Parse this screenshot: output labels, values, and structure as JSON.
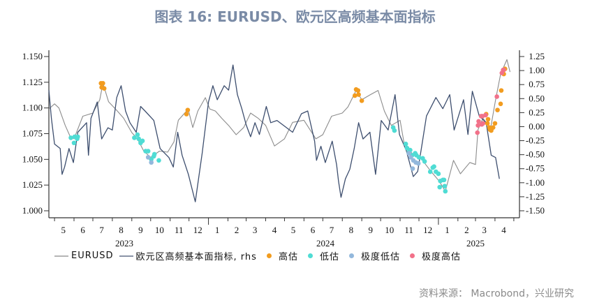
{
  "title": "图表 16: EURUSD、欧元区高频基本面指标",
  "source": "资料来源：  Macrobond，兴业研究",
  "chart_data": {
    "type": "line",
    "xlim": [
      "2023-04-22",
      "2025-05-10"
    ],
    "x_tick_labels": [
      {
        "label": "5",
        "date": "2023-05-15"
      },
      {
        "label": "6",
        "date": "2023-06-15"
      },
      {
        "label": "7",
        "date": "2023-07-15"
      },
      {
        "label": "8",
        "date": "2023-08-15"
      },
      {
        "label": "9",
        "date": "2023-09-15"
      },
      {
        "label": "10",
        "date": "2023-10-15"
      },
      {
        "label": "11",
        "date": "2023-11-15"
      },
      {
        "label": "12",
        "date": "2023-12-15"
      },
      {
        "label": "1",
        "date": "2024-01-15"
      },
      {
        "label": "2",
        "date": "2024-02-15"
      },
      {
        "label": "3",
        "date": "2024-03-15"
      },
      {
        "label": "4",
        "date": "2024-04-15"
      },
      {
        "label": "5",
        "date": "2024-05-15"
      },
      {
        "label": "6",
        "date": "2024-06-15"
      },
      {
        "label": "7",
        "date": "2024-07-15"
      },
      {
        "label": "8",
        "date": "2024-08-15"
      },
      {
        "label": "9",
        "date": "2024-09-15"
      },
      {
        "label": "10",
        "date": "2024-10-15"
      },
      {
        "label": "11",
        "date": "2024-11-15"
      },
      {
        "label": "12",
        "date": "2024-12-15"
      },
      {
        "label": "1",
        "date": "2025-01-15"
      },
      {
        "label": "2",
        "date": "2025-02-15"
      },
      {
        "label": "3",
        "date": "2025-03-15"
      },
      {
        "label": "4",
        "date": "2025-04-15"
      }
    ],
    "year_labels": [
      {
        "label": "2023",
        "date": "2023-08-20"
      },
      {
        "label": "2024",
        "date": "2024-07-05"
      },
      {
        "label": "2025",
        "date": "2025-03-01"
      }
    ],
    "y_left": {
      "lim": [
        1.0,
        1.15
      ],
      "ticks": [
        "1.000",
        "1.025",
        "1.050",
        "1.075",
        "1.100",
        "1.125",
        "1.150"
      ]
    },
    "y_right": {
      "lim": [
        -1.5,
        1.25
      ],
      "ticks": [
        "-1.50",
        "-1.25",
        "-1.00",
        "-0.75",
        "-0.50",
        "-0.25",
        "0.00",
        "0.25",
        "0.50",
        "0.75",
        "1.00",
        "1.25"
      ]
    },
    "colors": {
      "eurusd": "#8c8c8c",
      "index": "#3d4e6e",
      "high": "#f29c1f",
      "low": "#4fdcd4",
      "extreme_low": "#93b8dc",
      "extreme_high": "#f27189"
    },
    "legend": {
      "eurusd": "EURUSD",
      "index": "欧元区高频基本面指标, rhs",
      "high": "高估",
      "low": "低估",
      "extreme_low": "极度低估",
      "extreme_high": "极度高估"
    },
    "series": [
      {
        "name": "EURUSD",
        "axis": "left",
        "points": [
          [
            "2023-04-22",
            1.099
          ],
          [
            "2023-05-01",
            1.104
          ],
          [
            "2023-05-08",
            1.1
          ],
          [
            "2023-05-18",
            1.083
          ],
          [
            "2023-05-26",
            1.072
          ],
          [
            "2023-06-01",
            1.07
          ],
          [
            "2023-06-15",
            1.092
          ],
          [
            "2023-07-01",
            1.095
          ],
          [
            "2023-07-12",
            1.108
          ],
          [
            "2023-07-17",
            1.124
          ],
          [
            "2023-07-26",
            1.106
          ],
          [
            "2023-08-09",
            1.097
          ],
          [
            "2023-08-19",
            1.09
          ],
          [
            "2023-09-01",
            1.076
          ],
          [
            "2023-09-10",
            1.07
          ],
          [
            "2023-09-20",
            1.058
          ],
          [
            "2023-10-01",
            1.052
          ],
          [
            "2023-10-15",
            1.058
          ],
          [
            "2023-10-28",
            1.057
          ],
          [
            "2023-11-07",
            1.067
          ],
          [
            "2023-11-14",
            1.088
          ],
          [
            "2023-11-27",
            1.097
          ],
          [
            "2023-11-30",
            1.098
          ],
          [
            "2023-12-07",
            1.081
          ],
          [
            "2023-12-15",
            1.097
          ],
          [
            "2023-12-27",
            1.11
          ],
          [
            "2024-01-03",
            1.099
          ],
          [
            "2024-01-12",
            1.097
          ],
          [
            "2024-01-22",
            1.09
          ],
          [
            "2024-02-02",
            1.083
          ],
          [
            "2024-02-14",
            1.074
          ],
          [
            "2024-02-26",
            1.081
          ],
          [
            "2024-03-08",
            1.095
          ],
          [
            "2024-03-20",
            1.09
          ],
          [
            "2024-04-01",
            1.083
          ],
          [
            "2024-04-15",
            1.063
          ],
          [
            "2024-05-01",
            1.07
          ],
          [
            "2024-05-14",
            1.086
          ],
          [
            "2024-06-01",
            1.088
          ],
          [
            "2024-06-20",
            1.07
          ],
          [
            "2024-07-01",
            1.074
          ],
          [
            "2024-07-15",
            1.092
          ],
          [
            "2024-08-01",
            1.095
          ],
          [
            "2024-08-10",
            1.101
          ],
          [
            "2024-08-23",
            1.117
          ],
          [
            "2024-09-01",
            1.108
          ],
          [
            "2024-09-15",
            1.113
          ],
          [
            "2024-09-27",
            1.117
          ],
          [
            "2024-10-07",
            1.097
          ],
          [
            "2024-10-18",
            1.083
          ],
          [
            "2024-11-01",
            1.088
          ],
          [
            "2024-11-07",
            1.067
          ],
          [
            "2024-11-22",
            1.054
          ],
          [
            "2024-12-03",
            1.052
          ],
          [
            "2024-12-18",
            1.04
          ],
          [
            "2025-01-02",
            1.029
          ],
          [
            "2025-01-12",
            1.019
          ],
          [
            "2025-01-25",
            1.049
          ],
          [
            "2025-02-05",
            1.036
          ],
          [
            "2025-02-20",
            1.047
          ],
          [
            "2025-03-01",
            1.045
          ],
          [
            "2025-03-05",
            1.079
          ],
          [
            "2025-03-13",
            1.09
          ],
          [
            "2025-03-25",
            1.08
          ],
          [
            "2025-04-02",
            1.108
          ],
          [
            "2025-04-10",
            1.133
          ],
          [
            "2025-04-20",
            1.147
          ],
          [
            "2025-04-25",
            1.135
          ]
        ]
      },
      {
        "name": "欧元区高频基本面指标, rhs",
        "axis": "right",
        "points": [
          [
            "2023-04-22",
            0.65
          ],
          [
            "2023-04-26",
            0.15
          ],
          [
            "2023-05-01",
            -0.31
          ],
          [
            "2023-05-10",
            -0.39
          ],
          [
            "2023-05-13",
            -0.85
          ],
          [
            "2023-05-17",
            -0.72
          ],
          [
            "2023-05-24",
            -0.39
          ],
          [
            "2023-05-31",
            -0.64
          ],
          [
            "2023-06-07",
            -0.1
          ],
          [
            "2023-06-21",
            0.07
          ],
          [
            "2023-06-24",
            -0.51
          ],
          [
            "2023-06-28",
            0.15
          ],
          [
            "2023-07-08",
            0.44
          ],
          [
            "2023-07-15",
            -0.22
          ],
          [
            "2023-07-25",
            -0.02
          ],
          [
            "2023-08-01",
            -0.06
          ],
          [
            "2023-08-08",
            0.52
          ],
          [
            "2023-08-15",
            0.73
          ],
          [
            "2023-08-22",
            0.28
          ],
          [
            "2023-08-29",
            0.07
          ],
          [
            "2023-09-08",
            -0.1
          ],
          [
            "2023-09-15",
            0.36
          ],
          [
            "2023-09-22",
            0.28
          ],
          [
            "2023-10-06",
            0.11
          ],
          [
            "2023-10-16",
            -0.39
          ],
          [
            "2023-10-30",
            -0.55
          ],
          [
            "2023-11-06",
            -0.72
          ],
          [
            "2023-11-13",
            -0.1
          ],
          [
            "2023-11-20",
            -0.51
          ],
          [
            "2023-11-30",
            -0.85
          ],
          [
            "2023-12-11",
            -1.34
          ],
          [
            "2023-12-22",
            -0.47
          ],
          [
            "2024-01-01",
            0.44
          ],
          [
            "2024-01-08",
            0.73
          ],
          [
            "2024-01-15",
            0.48
          ],
          [
            "2024-01-26",
            0.73
          ],
          [
            "2024-02-02",
            0.65
          ],
          [
            "2024-02-09",
            1.1
          ],
          [
            "2024-02-16",
            0.57
          ],
          [
            "2024-02-23",
            0.32
          ],
          [
            "2024-03-01",
            0.03
          ],
          [
            "2024-03-08",
            -0.18
          ],
          [
            "2024-03-15",
            0.07
          ],
          [
            "2024-03-22",
            -0.14
          ],
          [
            "2024-04-02",
            0.36
          ],
          [
            "2024-04-09",
            0.07
          ],
          [
            "2024-04-19",
            0.11
          ],
          [
            "2024-05-14",
            -0.1
          ],
          [
            "2024-05-28",
            0.23
          ],
          [
            "2024-06-07",
            0.28
          ],
          [
            "2024-06-18",
            -0.26
          ],
          [
            "2024-06-21",
            -0.6
          ],
          [
            "2024-06-28",
            -0.35
          ],
          [
            "2024-07-05",
            -0.64
          ],
          [
            "2024-07-16",
            -0.26
          ],
          [
            "2024-07-23",
            -0.68
          ],
          [
            "2024-07-26",
            -0.97
          ],
          [
            "2024-07-30",
            -1.26
          ],
          [
            "2024-08-06",
            -0.93
          ],
          [
            "2024-08-13",
            -0.76
          ],
          [
            "2024-08-20",
            -0.39
          ],
          [
            "2024-08-27",
            0.07
          ],
          [
            "2024-09-03",
            -0.22
          ],
          [
            "2024-09-14",
            -0.1
          ],
          [
            "2024-09-23",
            -0.85
          ],
          [
            "2024-10-02",
            0.11
          ],
          [
            "2024-10-13",
            -0.06
          ],
          [
            "2024-10-24",
            0.57
          ],
          [
            "2024-10-31",
            -0.14
          ],
          [
            "2024-11-11",
            -0.43
          ],
          [
            "2024-11-22",
            -0.89
          ],
          [
            "2024-11-29",
            -0.8
          ],
          [
            "2024-12-06",
            -0.31
          ],
          [
            "2024-12-13",
            0.19
          ],
          [
            "2024-12-28",
            0.52
          ],
          [
            "2025-01-08",
            0.32
          ],
          [
            "2025-01-19",
            0.57
          ],
          [
            "2025-01-26",
            -0.06
          ],
          [
            "2025-02-10",
            0.48
          ],
          [
            "2025-02-17",
            -0.14
          ],
          [
            "2025-02-24",
            0.63
          ],
          [
            "2025-03-07",
            0.19
          ],
          [
            "2025-03-18",
            0.07
          ],
          [
            "2025-03-26",
            -0.51
          ],
          [
            "2025-04-02",
            -0.55
          ],
          [
            "2025-04-08",
            -0.93
          ]
        ]
      }
    ],
    "markers": [
      {
        "class": "low",
        "points": [
          [
            "2023-05-27",
            1.071
          ],
          [
            "2023-06-01",
            1.066
          ],
          [
            "2023-06-02",
            1.072
          ],
          [
            "2023-06-06",
            1.07
          ],
          [
            "2023-06-07",
            1.072
          ],
          [
            "2023-09-05",
            1.071
          ],
          [
            "2023-09-10",
            1.074
          ],
          [
            "2023-09-12",
            1.07
          ],
          [
            "2023-09-15",
            1.066
          ],
          [
            "2023-09-18",
            1.068
          ],
          [
            "2023-09-23",
            1.058
          ],
          [
            "2023-09-27",
            1.058
          ],
          [
            "2023-10-02",
            1.05
          ],
          [
            "2023-10-06",
            1.053
          ],
          [
            "2023-10-07",
            1.055
          ],
          [
            "2023-10-14",
            1.049
          ],
          [
            "2024-10-21",
            1.081
          ],
          [
            "2024-10-23",
            1.078
          ],
          [
            "2024-11-10",
            1.065
          ],
          [
            "2024-11-12",
            1.061
          ],
          [
            "2024-11-15",
            1.057
          ],
          [
            "2024-11-17",
            1.059
          ],
          [
            "2024-11-20",
            1.054
          ],
          [
            "2024-11-25",
            1.056
          ],
          [
            "2024-11-27",
            1.054
          ],
          [
            "2024-12-01",
            1.052
          ],
          [
            "2024-12-07",
            1.051
          ],
          [
            "2024-12-10",
            1.048
          ],
          [
            "2024-12-19",
            1.038
          ],
          [
            "2024-12-23",
            1.042
          ],
          [
            "2024-12-25",
            1.043
          ],
          [
            "2024-12-28",
            1.038
          ],
          [
            "2025-01-01",
            1.036
          ],
          [
            "2025-01-03",
            1.023
          ],
          [
            "2025-01-04",
            1.029
          ],
          [
            "2025-01-08",
            1.03
          ],
          [
            "2025-01-10",
            1.03
          ],
          [
            "2025-01-11",
            1.024
          ],
          [
            "2025-01-12",
            1.019
          ]
        ]
      },
      {
        "class": "extreme_low",
        "points": [
          [
            "2023-09-27",
            1.052
          ],
          [
            "2023-10-02",
            1.047
          ],
          [
            "2024-11-15",
            1.056
          ],
          [
            "2024-11-18",
            1.052
          ],
          [
            "2024-11-21",
            1.041
          ],
          [
            "2024-11-22",
            1.049
          ],
          [
            "2024-11-26",
            1.047
          ],
          [
            "2024-11-30",
            1.046
          ]
        ]
      },
      {
        "class": "high",
        "points": [
          [
            "2023-07-14",
            1.124
          ],
          [
            "2023-07-17",
            1.124
          ],
          [
            "2023-07-15",
            1.12
          ],
          [
            "2023-07-19",
            1.119
          ],
          [
            "2023-11-27",
            1.094
          ],
          [
            "2023-11-29",
            1.098
          ],
          [
            "2024-08-21",
            1.112
          ],
          [
            "2024-08-23",
            1.118
          ],
          [
            "2024-08-26",
            1.117
          ],
          [
            "2024-08-27",
            1.113
          ],
          [
            "2024-09-01",
            1.107
          ],
          [
            "2025-03-18",
            1.094
          ],
          [
            "2025-03-20",
            1.085
          ],
          [
            "2025-03-21",
            1.089
          ],
          [
            "2025-03-23",
            1.081
          ],
          [
            "2025-03-24",
            1.079
          ],
          [
            "2025-03-26",
            1.078
          ],
          [
            "2025-03-29",
            1.081
          ],
          [
            "2025-04-01",
            1.085
          ],
          [
            "2025-04-05",
            1.098
          ],
          [
            "2025-04-10",
            1.104
          ],
          [
            "2025-04-11",
            1.117
          ],
          [
            "2025-04-15",
            1.133
          ],
          [
            "2025-04-17",
            1.138
          ]
        ]
      },
      {
        "class": "extreme_high",
        "points": [
          [
            "2025-03-04",
            1.076
          ],
          [
            "2025-03-05",
            1.083
          ],
          [
            "2025-03-06",
            1.087
          ],
          [
            "2025-03-10",
            1.092
          ],
          [
            "2025-03-11",
            1.084
          ],
          [
            "2025-03-12",
            1.092
          ],
          [
            "2025-03-13",
            1.085
          ],
          [
            "2025-03-17",
            1.093
          ],
          [
            "2025-04-04",
            1.111
          ],
          [
            "2025-04-12",
            1.134
          ],
          [
            "2025-04-14",
            1.137
          ],
          [
            "2025-04-15",
            1.137
          ]
        ]
      }
    ]
  }
}
